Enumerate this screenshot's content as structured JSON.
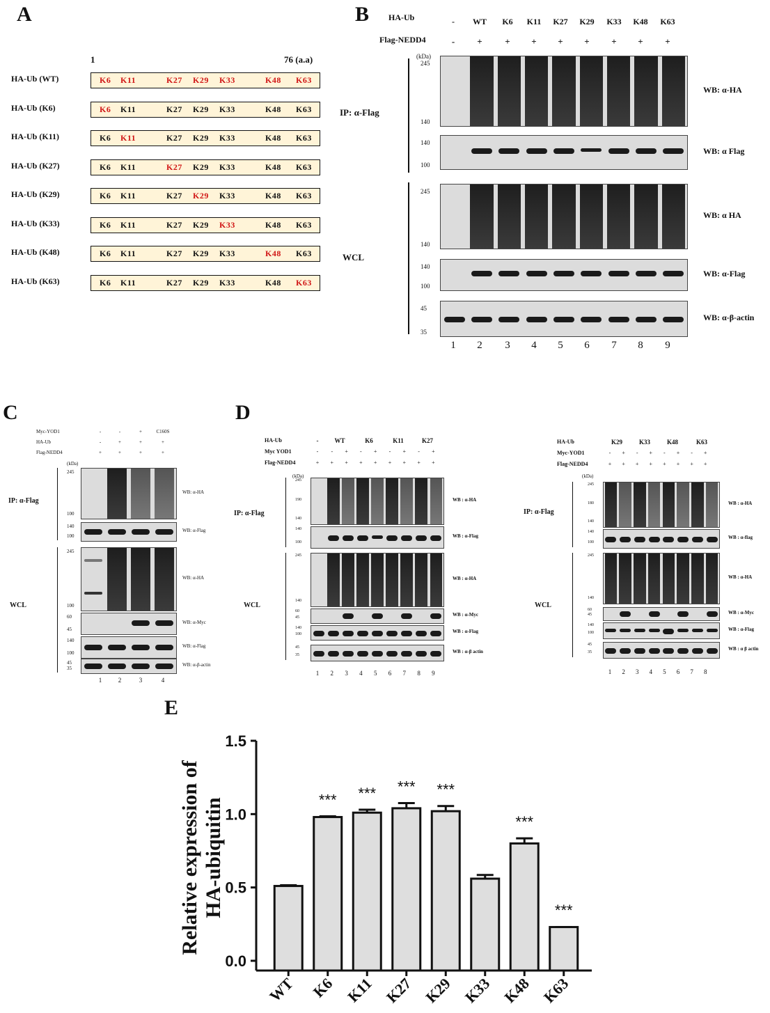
{
  "panelA": {
    "label": "A",
    "axis_start": "1",
    "axis_end": "76 (a.a)",
    "constructs": [
      {
        "name": "HA-Ub (WT)",
        "red": [
          "K6",
          "K11",
          "K27",
          "K29",
          "K33",
          "K48",
          "K63"
        ]
      },
      {
        "name": "HA-Ub (K6)",
        "red": [
          "K6"
        ]
      },
      {
        "name": "HA-Ub (K11)",
        "red": [
          "K11"
        ]
      },
      {
        "name": "HA-Ub (K27)",
        "red": [
          "K27"
        ]
      },
      {
        "name": "HA-Ub (K29)",
        "red": [
          "K29"
        ]
      },
      {
        "name": "HA-Ub (K33)",
        "red": [
          "K33"
        ]
      },
      {
        "name": "HA-Ub (K48)",
        "red": [
          "K48"
        ]
      },
      {
        "name": "HA-Ub (K63)",
        "red": [
          "K63"
        ]
      }
    ],
    "residues": [
      "K6",
      "K11",
      "K27",
      "K29",
      "K33",
      "K48",
      "K63"
    ]
  },
  "panelB": {
    "label": "B",
    "row1_label": "HA-Ub",
    "row1_values": [
      "-",
      "WT",
      "K6",
      "K11",
      "K27",
      "K29",
      "K33",
      "K48",
      "K63"
    ],
    "row2_label": "Flag-NEDD4",
    "row2_values": [
      "-",
      "+",
      "+",
      "+",
      "+",
      "+",
      "+",
      "+",
      "+"
    ],
    "kda": "(kDa)",
    "ip_label": "IP: α-Flag",
    "wcl_label": "WCL",
    "blots": [
      {
        "wb": "WB: α-HA",
        "markers": [
          "245",
          "140"
        ]
      },
      {
        "wb": "WB: α Flag",
        "markers": [
          "140",
          "100"
        ]
      },
      {
        "wb": "WB: α HA",
        "markers": [
          "245",
          "140"
        ]
      },
      {
        "wb": "WB: α-Flag",
        "markers": [
          "140",
          "100"
        ]
      },
      {
        "wb": "WB: α-β-actin",
        "markers": [
          "45",
          "35"
        ]
      }
    ],
    "lanes": [
      "1",
      "2",
      "3",
      "4",
      "5",
      "6",
      "7",
      "8",
      "9"
    ]
  },
  "panelC": {
    "label": "C",
    "rows": [
      {
        "label": "Myc-YOD1",
        "values": [
          "-",
          "-",
          "+",
          "C160S"
        ]
      },
      {
        "label": "HA-Ub",
        "values": [
          "-",
          "+",
          "+",
          "+"
        ]
      },
      {
        "label": "Flag-NEDD4",
        "values": [
          "+",
          "+",
          "+",
          "+"
        ]
      }
    ],
    "kda": "(kDa)",
    "ip_label": "IP: α-Flag",
    "wcl_label": "WCL",
    "blots": [
      {
        "wb": "WB: α-HA",
        "markers": [
          "245",
          "100"
        ]
      },
      {
        "wb": "WB: α-Flag",
        "markers": [
          "140",
          "100"
        ]
      },
      {
        "wb": "WB: α-HA",
        "markers": [
          "245",
          "100"
        ]
      },
      {
        "wb": "WB: α-Myc",
        "markers": [
          "60",
          "45"
        ]
      },
      {
        "wb": "WB: α-Flag",
        "markers": [
          "140",
          "100"
        ]
      },
      {
        "wb": "WB: α-β-actin",
        "markers": [
          "45",
          "35"
        ]
      }
    ],
    "lanes": [
      "1",
      "2",
      "3",
      "4"
    ]
  },
  "panelD": {
    "label": "D",
    "left": {
      "rows": [
        {
          "label": "HA-Ub",
          "values": [
            "-",
            "WT",
            "K6",
            "K11",
            "K27"
          ]
        },
        {
          "label": "Myc YOD1",
          "values": [
            "-",
            "-",
            "+",
            "-",
            "+",
            "-",
            "+",
            "-",
            "+"
          ]
        },
        {
          "label": "Flag-NEDD4",
          "values": [
            "+",
            "+",
            "+",
            "+",
            "+",
            "+",
            "+",
            "+",
            "+"
          ]
        }
      ],
      "kda": "(kDa)",
      "ip_label": "IP: α-Flag",
      "wcl_label": "WCL",
      "blots": [
        {
          "wb": "WB : α-HA",
          "markers": [
            "245",
            "190",
            "140"
          ]
        },
        {
          "wb": "WB : α-Flag",
          "markers": [
            "140",
            "100"
          ]
        },
        {
          "wb": "WB : α-HA",
          "markers": [
            "245",
            "140"
          ]
        },
        {
          "wb": "WB : α-Myc",
          "markers": [
            "60",
            "45"
          ]
        },
        {
          "wb": "WB : α-Flag",
          "markers": [
            "140",
            "100"
          ]
        },
        {
          "wb": "WB : α-β actin",
          "markers": [
            "45",
            "35"
          ]
        }
      ],
      "lanes": [
        "1",
        "2",
        "3",
        "4",
        "5",
        "6",
        "7",
        "8",
        "9"
      ]
    },
    "right": {
      "rows": [
        {
          "label": "HA-Ub",
          "values": [
            "K29",
            "K33",
            "K48",
            "K63"
          ]
        },
        {
          "label": "Myc-YOD1",
          "values": [
            "-",
            "+",
            "-",
            "+",
            "-",
            "+",
            "-",
            "+"
          ]
        },
        {
          "label": "Flag-NEDD4",
          "values": [
            "+",
            "+",
            "+",
            "+",
            "+",
            "+",
            "+",
            "+"
          ]
        }
      ],
      "kda": "(kDa)",
      "ip_label": "IP: α-Flag",
      "wcl_label": "WCL",
      "blots": [
        {
          "wb": "WB : α-HA",
          "markers": [
            "245",
            "180",
            "140"
          ]
        },
        {
          "wb": "WB : α-flag",
          "markers": [
            "140",
            "100"
          ]
        },
        {
          "wb": "WB : α-HA",
          "markers": [
            "245",
            "140"
          ]
        },
        {
          "wb": "WB : α-Myc",
          "markers": [
            "60",
            "45"
          ]
        },
        {
          "wb": "WB : α-Flag",
          "markers": [
            "140",
            "100"
          ]
        },
        {
          "wb": "WB : α β actin",
          "markers": [
            "45",
            "35"
          ]
        }
      ],
      "lanes": [
        "1",
        "2",
        "3",
        "4",
        "5",
        "6",
        "7",
        "8"
      ]
    }
  },
  "panelE": {
    "label": "E",
    "chart_data": {
      "type": "bar",
      "categories": [
        "WT",
        "K6",
        "K11",
        "K27",
        "K29",
        "K33",
        "K48",
        "K63"
      ],
      "values": [
        0.51,
        0.98,
        1.01,
        1.04,
        1.02,
        0.56,
        0.8,
        0.23
      ],
      "errors": [
        0.005,
        0.005,
        0.02,
        0.035,
        0.035,
        0.025,
        0.035,
        0.003
      ],
      "significance": [
        "",
        "***",
        "***",
        "***",
        "***",
        "",
        "***",
        "***"
      ],
      "ylabel_line1": "Relative expression of",
      "ylabel_line2": "HA-ubiquitin",
      "xlabel": "",
      "ylim": [
        0,
        1.5
      ],
      "yticks": [
        "0.0",
        "0.5",
        "1.0",
        "1.5"
      ],
      "bar_color": "#dedede"
    }
  }
}
